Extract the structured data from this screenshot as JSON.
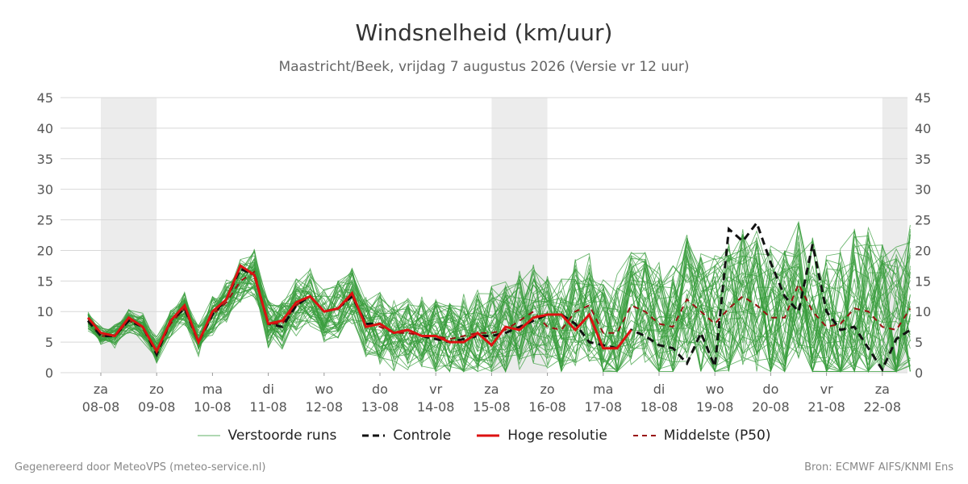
{
  "header": {
    "title": "Windsnelheid (km/uur)",
    "subtitle": "Maastricht/Beek, vrijdag  7 augustus 2026 (Versie vr 12 uur)"
  },
  "footer": {
    "left": "Gegenereerd door MeteoVPS (meteo-service.nl)",
    "right": "Bron: ECMWF AIFS/KNMI Ens"
  },
  "legend": {
    "items": [
      {
        "label": "Verstoorde runs",
        "color": "#3a9e3e",
        "style": "thin"
      },
      {
        "label": "Controle",
        "color": "#111111",
        "style": "dashed"
      },
      {
        "label": "Hoge resolutie",
        "color": "#dd1111",
        "style": "solid"
      },
      {
        "label": "Middelste (P50)",
        "color": "#991111",
        "style": "dashed"
      }
    ]
  },
  "chart_data": {
    "type": "line",
    "xlabels": [
      {
        "day": "za",
        "date": "08-08"
      },
      {
        "day": "zo",
        "date": "09-08"
      },
      {
        "day": "ma",
        "date": "10-08"
      },
      {
        "day": "di",
        "date": "11-08"
      },
      {
        "day": "wo",
        "date": "12-08"
      },
      {
        "day": "do",
        "date": "13-08"
      },
      {
        "day": "vr",
        "date": "14-08"
      },
      {
        "day": "za",
        "date": "15-08"
      },
      {
        "day": "zo",
        "date": "16-08"
      },
      {
        "day": "ma",
        "date": "17-08"
      },
      {
        "day": "di",
        "date": "18-08"
      },
      {
        "day": "wo",
        "date": "19-08"
      },
      {
        "day": "do",
        "date": "20-08"
      },
      {
        "day": "vr",
        "date": "21-08"
      },
      {
        "day": "za",
        "date": "22-08"
      }
    ],
    "ylim": [
      0,
      45
    ],
    "yticks": [
      0,
      5,
      10,
      15,
      20,
      25,
      30,
      35,
      40,
      45
    ],
    "grid": true,
    "weekend_shading": true,
    "colors": {
      "ensemble": "#3a9e3e",
      "control": "#111111",
      "hires": "#dd1111",
      "median": "#991111",
      "shade": "#ececec",
      "grid": "#d8d8d8"
    },
    "series": [
      {
        "name": "Controle",
        "x": [
          -0.23,
          0.0,
          0.25,
          0.5,
          0.75,
          1.0,
          1.25,
          1.5,
          1.75,
          2.0,
          2.25,
          2.5,
          2.75,
          3.0,
          3.25,
          3.5,
          3.75,
          4.0,
          4.25,
          4.5,
          4.75,
          5.0,
          5.25,
          5.5,
          5.75,
          6.0,
          6.25,
          6.5,
          6.75,
          7.0,
          7.25,
          7.5,
          7.75,
          8.0,
          8.25,
          8.5,
          8.75,
          9.0,
          9.25,
          9.5,
          9.75,
          10.0,
          10.25,
          10.5,
          10.75,
          11.0,
          11.25,
          11.5,
          11.75,
          12.0,
          12.25,
          12.5,
          12.75,
          13.0,
          13.25,
          13.5,
          13.75,
          14.0,
          14.25,
          14.5
        ],
        "values": [
          8.5,
          6.0,
          6.0,
          8.5,
          7.5,
          3.0,
          8.5,
          10.5,
          5.0,
          9.5,
          12.0,
          17.0,
          16.0,
          8.0,
          7.5,
          11.0,
          12.5,
          10.0,
          10.5,
          12.5,
          8.0,
          8.0,
          6.5,
          7.0,
          6.0,
          5.5,
          5.0,
          5.5,
          6.0,
          6.0,
          6.5,
          7.5,
          8.5,
          9.5,
          9.5,
          8.0,
          5.0,
          4.5,
          4.0,
          7.0,
          6.0,
          4.5,
          4.0,
          1.5,
          6.5,
          1.0,
          23.5,
          21.5,
          24.5,
          18.0,
          12.5,
          10.0,
          21.0,
          10.0,
          7.0,
          7.5,
          4.0,
          0.5,
          5.5,
          7.0
        ]
      },
      {
        "name": "Hoge resolutie",
        "x": [
          -0.23,
          0.0,
          0.25,
          0.5,
          0.75,
          1.0,
          1.25,
          1.5,
          1.75,
          2.0,
          2.25,
          2.5,
          2.75,
          3.0,
          3.25,
          3.5,
          3.75,
          4.0,
          4.25,
          4.5,
          4.75,
          5.0,
          5.25,
          5.5,
          5.75,
          6.0,
          6.25,
          6.5,
          6.75,
          7.0,
          7.25,
          7.5,
          7.75,
          8.0,
          8.25,
          8.5,
          8.75,
          9.0,
          9.25,
          9.5
        ],
        "values": [
          9.0,
          6.5,
          6.0,
          9.0,
          7.5,
          3.5,
          8.5,
          11.0,
          5.0,
          10.0,
          12.0,
          17.5,
          16.0,
          8.0,
          8.5,
          11.5,
          12.5,
          10.0,
          10.5,
          13.0,
          7.5,
          8.0,
          6.5,
          7.0,
          6.0,
          6.0,
          5.0,
          5.0,
          6.5,
          4.5,
          7.5,
          7.0,
          9.0,
          9.5,
          9.5,
          7.0,
          9.5,
          4.0,
          4.0,
          7.0
        ]
      },
      {
        "name": "Middelste (P50)",
        "x": [
          -0.23,
          0.0,
          0.25,
          0.5,
          0.75,
          1.0,
          1.25,
          1.5,
          1.75,
          2.0,
          2.25,
          2.5,
          2.75,
          3.0,
          3.25,
          3.5,
          3.75,
          4.0,
          4.25,
          4.5,
          4.75,
          5.0,
          5.25,
          5.5,
          5.75,
          6.0,
          6.25,
          6.5,
          6.75,
          7.0,
          7.25,
          7.5,
          7.75,
          8.0,
          8.25,
          8.5,
          8.75,
          9.0,
          9.25,
          9.5,
          9.75,
          10.0,
          10.25,
          10.5,
          10.75,
          11.0,
          11.25,
          11.5,
          11.75,
          12.0,
          12.25,
          12.5,
          12.75,
          13.0,
          13.25,
          13.5,
          13.75,
          14.0,
          14.25,
          14.5
        ],
        "values": [
          8.5,
          6.0,
          6.0,
          8.5,
          7.5,
          3.5,
          8.0,
          10.5,
          5.0,
          9.5,
          11.5,
          15.0,
          16.5,
          8.0,
          8.0,
          11.0,
          12.5,
          10.0,
          10.5,
          12.5,
          8.0,
          7.5,
          6.5,
          6.5,
          6.0,
          6.0,
          5.5,
          6.0,
          6.5,
          6.5,
          7.0,
          8.5,
          10.0,
          7.5,
          7.0,
          10.0,
          11.0,
          6.5,
          6.5,
          11.0,
          10.0,
          8.0,
          7.5,
          12.0,
          10.0,
          8.0,
          10.5,
          12.5,
          11.0,
          9.0,
          9.0,
          14.5,
          10.0,
          7.5,
          8.0,
          10.5,
          10.0,
          7.5,
          7.0,
          10.5
        ]
      }
    ]
  }
}
